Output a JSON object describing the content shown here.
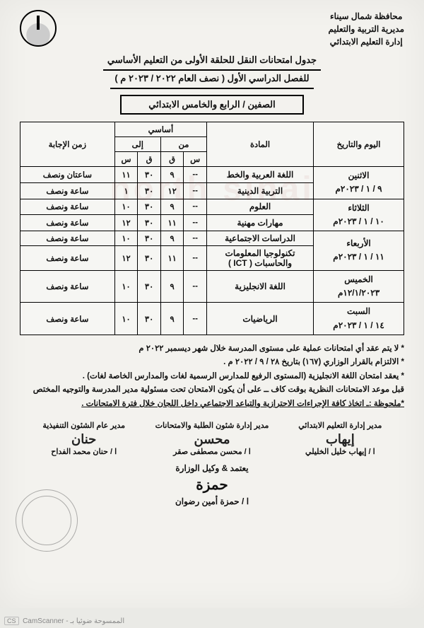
{
  "header": {
    "gov": "محافظة شمال سيناء",
    "dir": "مديرية التربية والتعليم",
    "dept": "إدارة التعليم الابتدائي"
  },
  "title": {
    "l1": "جدول امتحانات النقل للحلقة الأولى من التعليم الأساسي",
    "l2": "للفصل الدراسي الأول ( نصف العام ٢٠٢٢ / ٢٠٢٣ م )"
  },
  "grades": "الصفين / الرابع والخامس الابتدائي",
  "cols": {
    "day": "اليوم والتاريخ",
    "subject": "المادة",
    "group": "أساسي",
    "from": "من",
    "to": "إلى",
    "h": "س",
    "m": "ق",
    "duration": "زمن الإجابة"
  },
  "rows": [
    {
      "day": "الاثنين",
      "date": "٩ / ١ / ٢٠٢٣م",
      "subj": "اللغة العربية والخط",
      "fh": "--",
      "fm": "٩",
      "th": "٣٠",
      "tm": "١١",
      "dur": "ساعتان ونصف"
    },
    {
      "day": "",
      "date": "",
      "subj": "التربية الدينية",
      "fh": "--",
      "fm": "١٢",
      "th": "٣٠",
      "tm": "١",
      "dur": "ساعة ونصف"
    },
    {
      "day": "الثلاثاء",
      "date": "١٠ / ١ / ٢٠٢٣م",
      "subj": "العلوم",
      "fh": "--",
      "fm": "٩",
      "th": "٣٠",
      "tm": "١٠",
      "dur": "ساعة ونصف"
    },
    {
      "day": "",
      "date": "",
      "subj": "مهارات مهنية",
      "fh": "--",
      "fm": "١١",
      "th": "٣٠",
      "tm": "١٢",
      "dur": "ساعة ونصف"
    },
    {
      "day": "الأربعاء",
      "date": "١١ / ١ / ٢٠٢٣م",
      "subj": "الدراسات الاجتماعية",
      "fh": "--",
      "fm": "٩",
      "th": "٣٠",
      "tm": "١٠",
      "dur": "ساعة ونصف"
    },
    {
      "day": "",
      "date": "",
      "subj": "تكنولوجيا المعلومات والحاسبات ( ICT )",
      "fh": "--",
      "fm": "١١",
      "th": "٣٠",
      "tm": "١٢",
      "dur": "ساعة ونصف"
    },
    {
      "day": "الخميس",
      "date": "١٢/١/٢٠٢٣م",
      "subj": "اللغة الانجليزية",
      "fh": "--",
      "fm": "٩",
      "th": "٣٠",
      "tm": "١٠",
      "dur": "ساعة ونصف",
      "tall": true
    },
    {
      "day": "السبت",
      "date": "١٤ / ١ / ٢٠٢٣م",
      "subj": "الرياضيات",
      "fh": "--",
      "fm": "٩",
      "th": "٣٠",
      "tm": "١٠",
      "dur": "ساعة ونصف",
      "tall": true
    }
  ],
  "notes": [
    "* لا يتم عقد أي امتحانات عملية على مستوى المدرسة خلال شهر ديسمبر ٢٠٢٢ م",
    "* الالتزام بالقرار الوزاري (١٦٧) بتاريخ ٢٨ / ٩ / ٢٠٢٢ م .",
    "* يعقد امتحان اللغة الانجليزية (المستوى الرفيع للمدارس الرسمية لغات والمدارس الخاصة لغات) .",
    "قبل موعد الامتحانات النظرية بوقت كاف ــ على أن يكون الامتحان تحت مسئولية مدير المدرسة والتوجيه المختص"
  ],
  "note_bold": "*ملحوظة :ـ اتخاذ كافة الإجراءات الاحترازية والتباعد الاجتماعي داخل اللجان خلال فترة الامتحانات .",
  "sig": {
    "t1": "مدير إدارة التعليم الابتدائي",
    "n1": "ا / إيهاب خليل الخليلي",
    "t2": "مدير إدارة شئون الطلبة والامتحانات",
    "n2": "ا / محسن مصطفى صقر",
    "t3": "مدير عام الشئون التنفيذية",
    "n3": "ا / حنان محمد الفداح"
  },
  "approve": {
    "t": "يعتمد & وكيل الوزارة",
    "n": "ا / حمزة أمين رضوان"
  },
  "footer": {
    "left": "CS  CamScanner - الممسوحة ضوئيا بـ"
  }
}
